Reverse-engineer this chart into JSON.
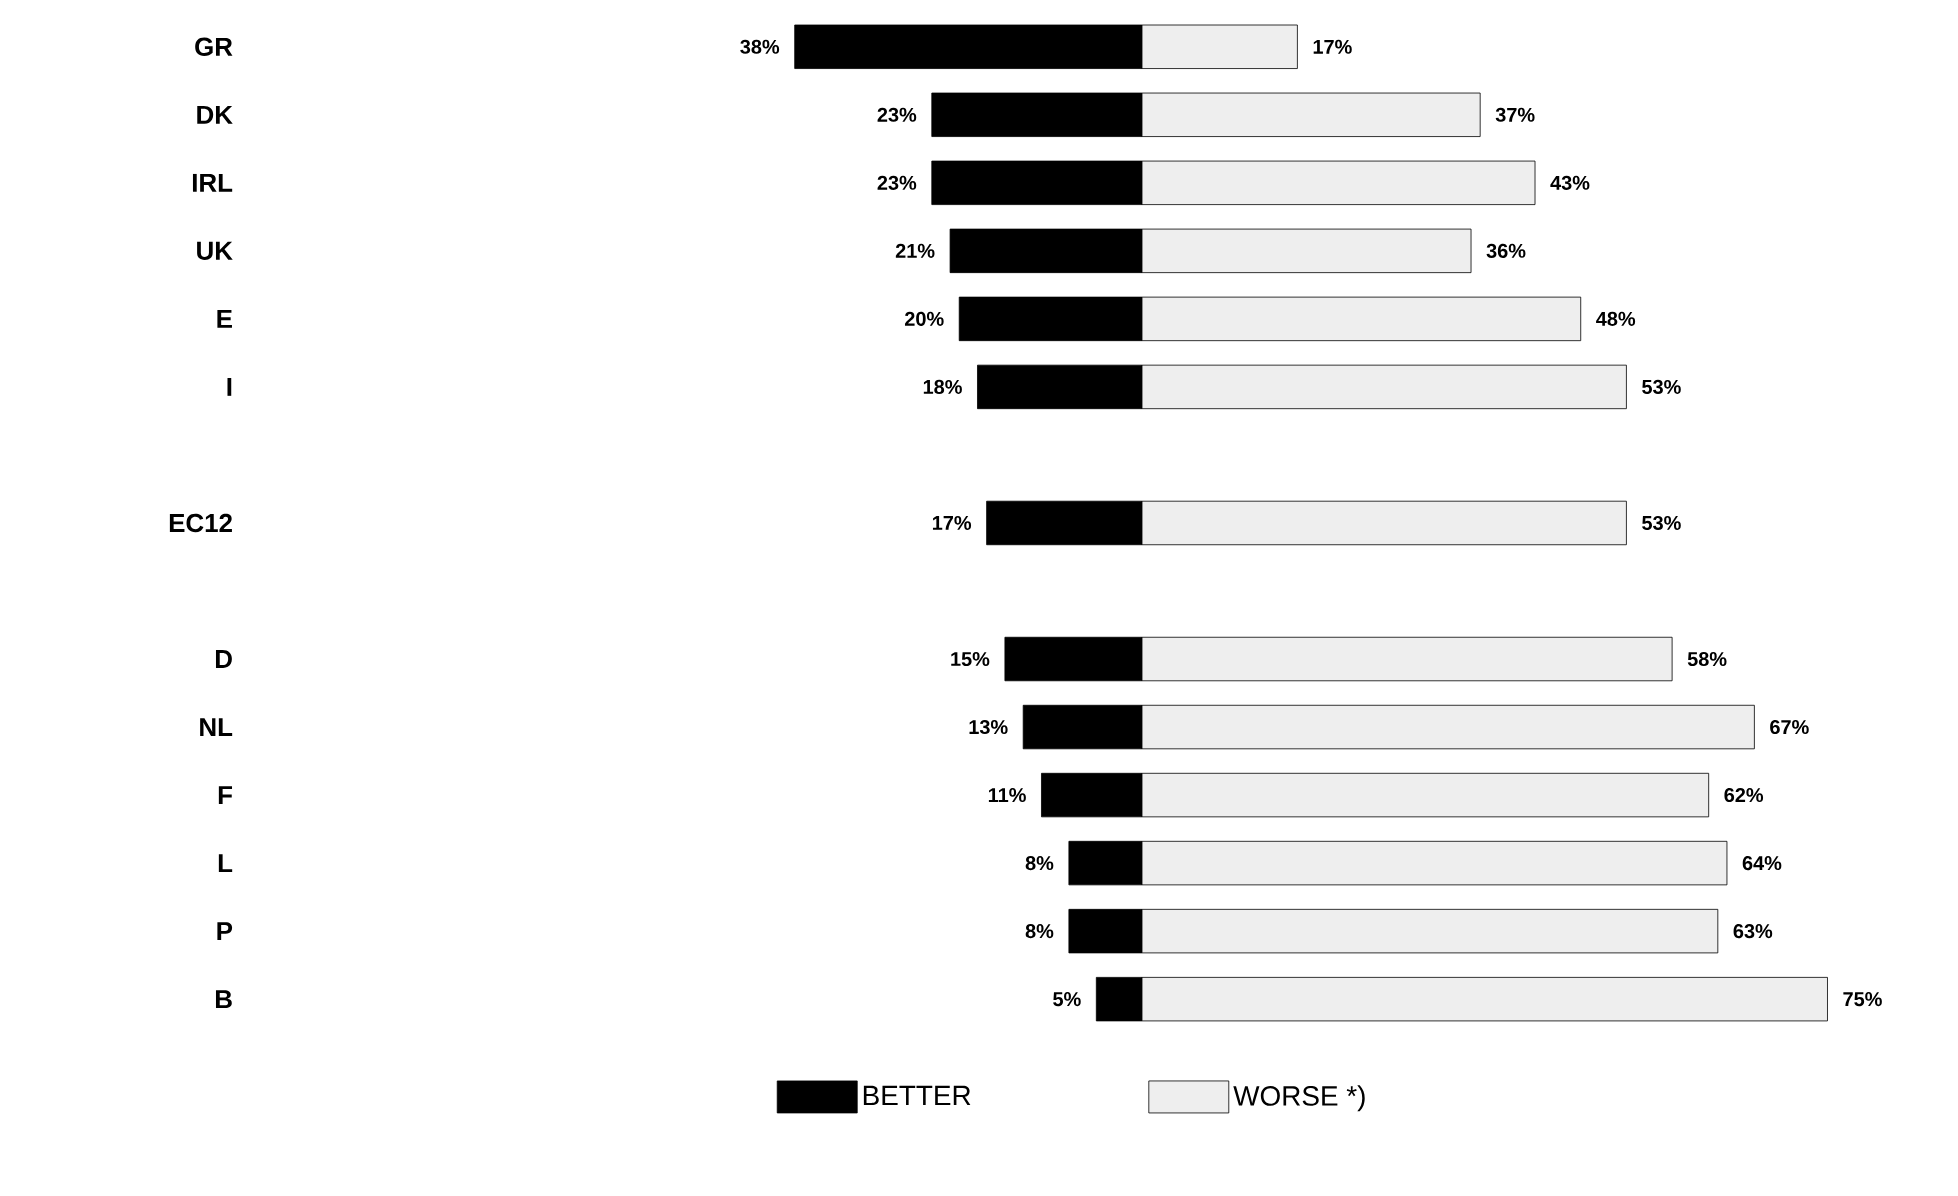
{
  "chart_data": [
    {
      "type": "bar",
      "orientation": "horizontal",
      "categories": [
        "GR",
        "DK",
        "IRL",
        "UK",
        "E",
        "I",
        null,
        "EC12",
        null,
        "D",
        "NL",
        "F",
        "L",
        "P",
        "B"
      ],
      "series": [
        {
          "name": "BETTER",
          "color": "#000000",
          "values": [
            38,
            23,
            23,
            21,
            20,
            18,
            null,
            17,
            null,
            15,
            13,
            11,
            8,
            8,
            5
          ],
          "value_labels": [
            "38%",
            "23%",
            "23%",
            "21%",
            "20%",
            "18%",
            null,
            "17%",
            null,
            "15%",
            "13%",
            "11%",
            "8%",
            "8%",
            "5%"
          ]
        }
      ],
      "legend": "bottom"
    },
    {
      "type": "bar",
      "orientation": "horizontal",
      "categories": [
        null,
        null,
        null,
        null,
        null,
        null,
        null,
        null,
        null,
        null,
        null,
        null,
        null,
        null,
        null
      ],
      "series": [
        {
          "name": "WORSE *)",
          "color": "#eeeeee",
          "values": [
            17,
            37,
            43,
            36,
            48,
            53,
            null,
            53,
            null,
            58,
            67,
            62,
            64,
            63,
            75
          ],
          "value_labels": [
            "17%",
            "37%",
            "43%",
            "36%",
            "48%",
            "53%",
            null,
            "53%",
            null,
            "58%",
            "67%",
            "62%",
            "64%",
            "63%",
            "75%"
          ]
        }
      ],
      "legend": "bottom"
    }
  ]
}
